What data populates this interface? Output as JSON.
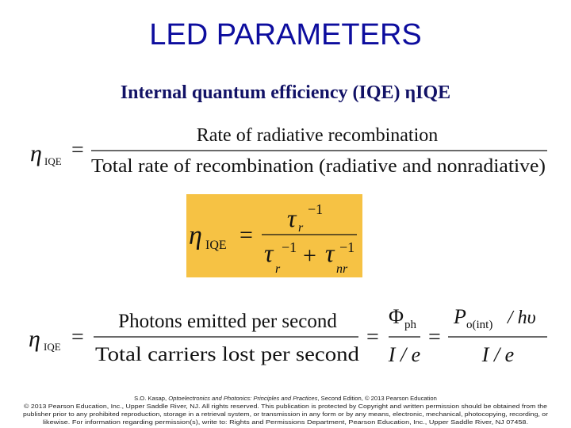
{
  "title": "LED PARAMETERS",
  "subtitle": {
    "text": "Internal quantum efficiency (IQE) ",
    "symbol": "η",
    "symbol_sub": "IQE"
  },
  "symbols": {
    "eta": "η",
    "iqe": "IQE",
    "equals": "=",
    "tau": "τ",
    "r": "r",
    "nr": "nr",
    "inverse": "−1",
    "plus": "+"
  },
  "equation_1": {
    "numerator": "Rate of radiative recombination",
    "denominator": "Total rate of recombination (radiative and nonradiative)"
  },
  "equation_3": {
    "numerator": "Photons emitted per second",
    "denominator": "Total carriers lost per second",
    "phi": "Φ",
    "phi_sub": "ph",
    "current_over_charge": "I / e",
    "power": "P",
    "power_sub": "o(int)",
    "photon_energy": "/ hυ"
  },
  "footer": {
    "author": "S.O. Kasap, ",
    "book": "Optoelectronics and Photonics: Principles and Practices",
    "edition": ", Second Edition, © 2013 Pearson Education",
    "line_2": "© 2013 Pearson Education, Inc., Upper Saddle River, NJ. All rights reserved. This publication is protected by Copyright and written permission should be obtained from the",
    "line_3": "publisher prior to any prohibited reproduction, storage in a retrieval system, or transmission in any form or by any means, electronic, mechanical, photocopying, recording, or",
    "line_4": "likewise. For information regarding permission(s), write to: Rights and Permissions Department, Pearson Education, Inc., Upper Saddle River, NJ 07458."
  }
}
